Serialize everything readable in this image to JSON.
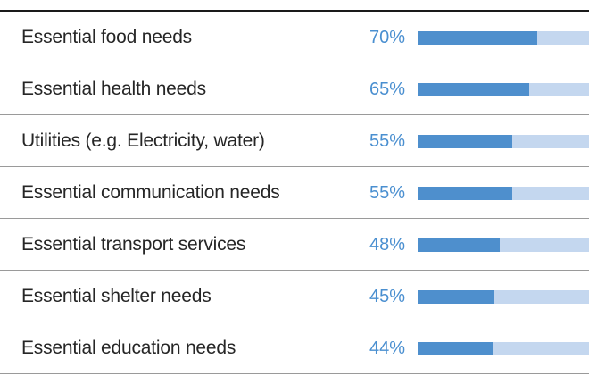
{
  "chart_data": {
    "type": "bar",
    "orientation": "horizontal",
    "categories": [
      "Essential food needs",
      "Essential health needs",
      "Utilities (e.g. Electricity, water)",
      "Essential communication needs",
      "Essential transport services",
      "Essential shelter needs",
      "Essential education needs"
    ],
    "values": [
      70,
      65,
      55,
      55,
      48,
      45,
      44
    ],
    "value_labels": [
      "70%",
      "65%",
      "55%",
      "55%",
      "48%",
      "45%",
      "44%"
    ],
    "value_unit": "%",
    "xlim": [
      0,
      100
    ],
    "grid": false,
    "colors": {
      "bar": "#4e8fcd",
      "track": "#c4d7ef",
      "value_text": "#4a8fd0",
      "label_text": "#262626"
    }
  }
}
